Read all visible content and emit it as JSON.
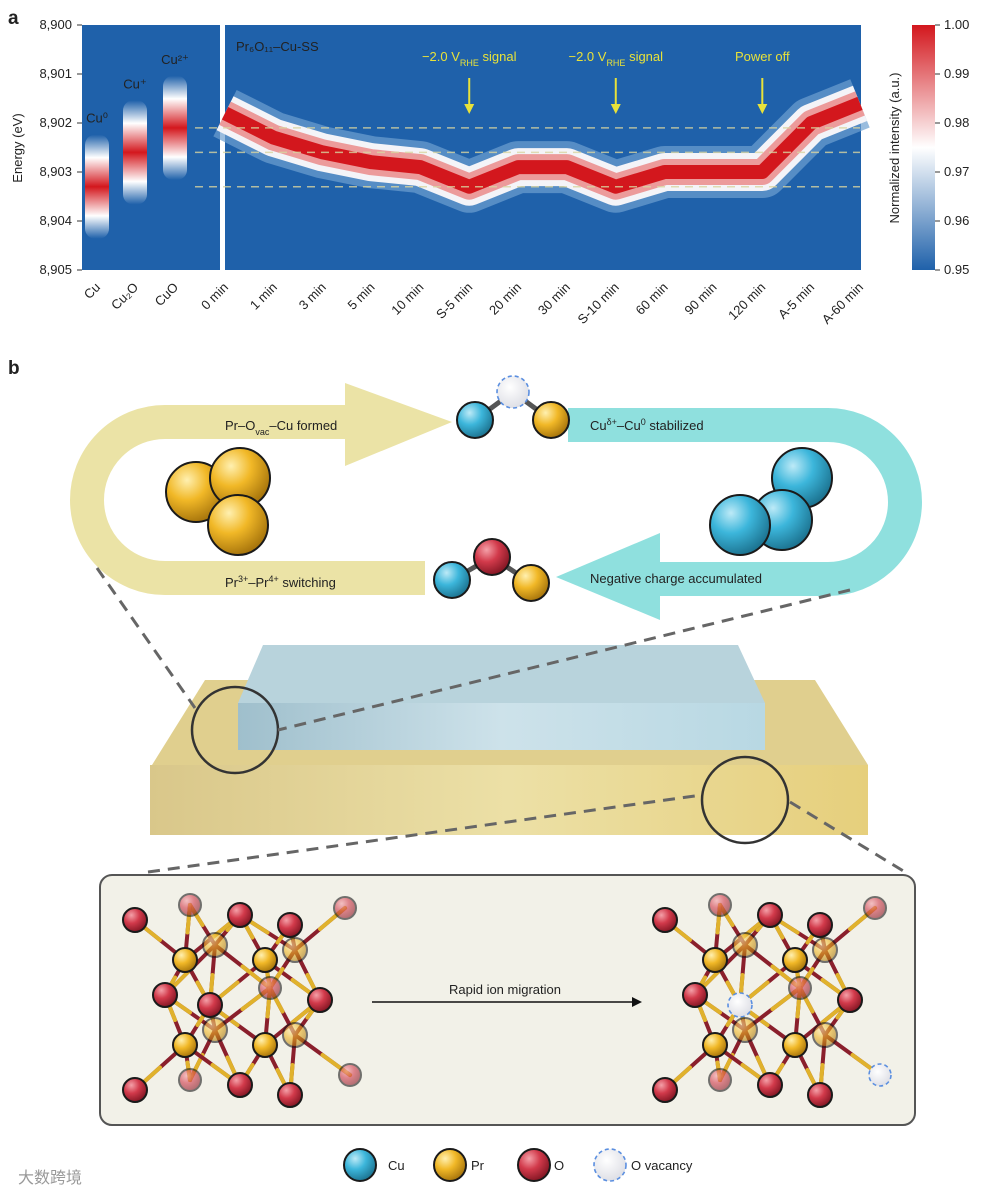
{
  "chart_data": {
    "type": "heatmap",
    "panel_label": "a",
    "ylabel": "Energy (eV)",
    "ylim": [
      8900,
      8905
    ],
    "y_inverted": true,
    "yticks": [
      {
        "value": 8900,
        "label": "8,900"
      },
      {
        "value": 8901,
        "label": "8,901"
      },
      {
        "value": 8902,
        "label": "8,902"
      },
      {
        "value": 8903,
        "label": "8,903"
      },
      {
        "value": 8904,
        "label": "8,904"
      },
      {
        "value": 8905,
        "label": "8,905"
      }
    ],
    "references": {
      "categories": [
        "Cu",
        "Cu₂O",
        "CuO"
      ],
      "labels": [
        "Cu⁰",
        "Cu⁺",
        "Cu²⁺"
      ],
      "values": [
        8903.3,
        8902.6,
        8902.1
      ]
    },
    "sample_label": "Pr₆O₁₁–Cu-SS",
    "categories": [
      "0 min",
      "1 min",
      "3 min",
      "5 min",
      "10 min",
      "S-5 min",
      "20 min",
      "30 min",
      "S-10 min",
      "60 min",
      "90 min",
      "120 min",
      "A-5 min",
      "A-60 min"
    ],
    "values": [
      8901.8,
      8902.3,
      8902.6,
      8902.8,
      8902.9,
      8903.3,
      8902.9,
      8902.9,
      8903.3,
      8903.0,
      8903.0,
      8903.0,
      8902.0,
      8901.6
    ],
    "annotations": [
      [
        {
          "text": "−2.0 V"
        },
        {
          "text": "RHE",
          "style": "sub"
        },
        {
          "text": " signal"
        }
      ],
      [
        {
          "text": "−2.0 V"
        },
        {
          "text": "RHE",
          "style": "sub"
        },
        {
          "text": " signal"
        }
      ],
      [
        {
          "text": "Power off"
        }
      ]
    ],
    "background": "#1f61aa",
    "colorbar": {
      "label": "Normalized intensity (a.u.)",
      "clim": [
        0.95,
        1.0
      ],
      "ticks": [
        {
          "value": 1.0,
          "label": "1.00"
        },
        0.99,
        0.98,
        0.97,
        0.96,
        {
          "value": 0.95,
          "label": "0.95"
        }
      ],
      "colors": [
        "#1f61aa",
        "#ffffff",
        "#d3171d"
      ]
    }
  },
  "panel_b": {
    "panel_label": "b",
    "cycle": [
      [
        {
          "text": "Pr–O"
        },
        {
          "text": "vac",
          "style": "sub"
        },
        {
          "text": "–Cu formed"
        }
      ],
      [
        {
          "text": "Cu"
        },
        {
          "text": "δ+",
          "style": "sup"
        },
        {
          "text": "–Cu"
        },
        {
          "text": "0",
          "style": "sup"
        },
        {
          "text": " stabilized"
        }
      ],
      [
        {
          "text": "Negative charge accumulated"
        }
      ],
      [
        {
          "text": "Pr"
        },
        {
          "text": "3+",
          "style": "sup"
        },
        {
          "text": "–Pr"
        },
        {
          "text": "4+",
          "style": "sup"
        },
        {
          "text": " switching"
        }
      ]
    ],
    "migration": "Rapid ion migration",
    "legend": [
      "Cu",
      "Pr",
      "O",
      "O vacancy"
    ]
  },
  "watermark": "大数跨境"
}
